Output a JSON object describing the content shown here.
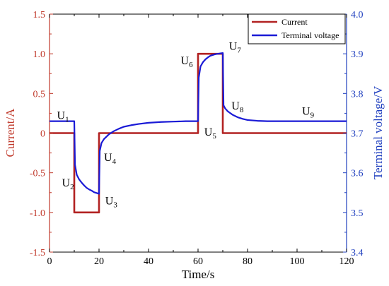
{
  "chart_data": {
    "type": "line",
    "xlabel": "Time/s",
    "ylabel_left": "Current/A",
    "ylabel_right": "Terminal voltage/V",
    "xlim": [
      0,
      120
    ],
    "ylim_left": [
      -1.5,
      1.5
    ],
    "ylim_right": [
      3.4,
      4.0
    ],
    "x_ticks": [
      "0",
      "20",
      "40",
      "60",
      "80",
      "100",
      "120"
    ],
    "y_left_ticks": [
      "-1.5",
      "-1.0",
      "-0.5",
      "0",
      "0.5",
      "1.0",
      "1.5"
    ],
    "y_right_ticks": [
      "3.4",
      "3.5",
      "3.6",
      "3.7",
      "3.8",
      "3.9",
      "4.0"
    ],
    "grid": false,
    "legend_position": "top-right",
    "series": [
      {
        "name": "Current",
        "axis": "left",
        "color": "#b22222",
        "x": [
          0,
          10,
          10,
          20,
          20,
          60,
          60,
          70,
          70,
          120
        ],
        "y": [
          0,
          0,
          -1.0,
          -1.0,
          0,
          0,
          1.0,
          1.0,
          0,
          0
        ]
      },
      {
        "name": "Terminal voltage",
        "axis": "right",
        "color": "#1a1ad6",
        "x": [
          0,
          10,
          10.3,
          11,
          12,
          13,
          14,
          15,
          16,
          17,
          18,
          19,
          20,
          20.3,
          21,
          22,
          24,
          26,
          28,
          30,
          33,
          36,
          40,
          45,
          50,
          55,
          60,
          60.3,
          61,
          62,
          63,
          64,
          65,
          66,
          67,
          68,
          69,
          70,
          70.3,
          71,
          72,
          74,
          76,
          78,
          80,
          84,
          88,
          92,
          96,
          100,
          110,
          120
        ],
        "y": [
          3.73,
          3.73,
          3.62,
          3.595,
          3.583,
          3.575,
          3.568,
          3.562,
          3.558,
          3.555,
          3.551,
          3.549,
          3.547,
          3.655,
          3.675,
          3.685,
          3.697,
          3.705,
          3.711,
          3.716,
          3.72,
          3.723,
          3.726,
          3.728,
          3.729,
          3.73,
          3.73,
          3.84,
          3.868,
          3.879,
          3.886,
          3.891,
          3.895,
          3.897,
          3.899,
          3.9,
          3.901,
          3.902,
          3.77,
          3.762,
          3.755,
          3.746,
          3.74,
          3.736,
          3.733,
          3.731,
          3.73,
          3.73,
          3.73,
          3.73,
          3.73,
          3.73
        ]
      }
    ],
    "annotations": [
      {
        "base": "U",
        "sub": "1",
        "x": 3,
        "y": 0.18,
        "axis": "left"
      },
      {
        "base": "U",
        "sub": "2",
        "x": 5,
        "y": -0.67,
        "axis": "left"
      },
      {
        "base": "U",
        "sub": "3",
        "x": 22.5,
        "y": -0.9,
        "axis": "left"
      },
      {
        "base": "U",
        "sub": "4",
        "x": 22,
        "y": -0.35,
        "axis": "left"
      },
      {
        "base": "U",
        "sub": "5",
        "x": 62.5,
        "y": -0.03,
        "axis": "left"
      },
      {
        "base": "U",
        "sub": "6",
        "x": 53,
        "y": 0.87,
        "axis": "left"
      },
      {
        "base": "U",
        "sub": "7",
        "x": 72.5,
        "y": 1.05,
        "axis": "left"
      },
      {
        "base": "U",
        "sub": "8",
        "x": 73.5,
        "y": 0.3,
        "axis": "left"
      },
      {
        "base": "U",
        "sub": "9",
        "x": 102,
        "y": 0.23,
        "axis": "left"
      }
    ]
  }
}
